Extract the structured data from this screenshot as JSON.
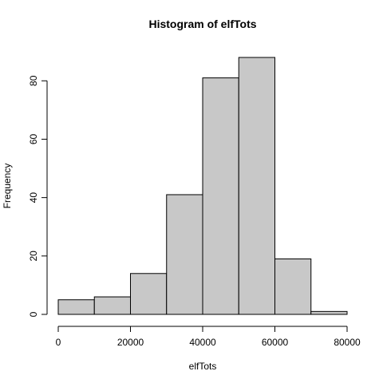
{
  "chart_data": {
    "type": "bar",
    "title": "Histogram of elfTots",
    "xlabel": "elfTots",
    "ylabel": "Frequency",
    "bins": [
      {
        "start": 0,
        "end": 10000,
        "value": 5
      },
      {
        "start": 10000,
        "end": 20000,
        "value": 6
      },
      {
        "start": 20000,
        "end": 30000,
        "value": 14
      },
      {
        "start": 30000,
        "end": 40000,
        "value": 41
      },
      {
        "start": 40000,
        "end": 50000,
        "value": 81
      },
      {
        "start": 50000,
        "end": 60000,
        "value": 88
      },
      {
        "start": 60000,
        "end": 70000,
        "value": 19
      },
      {
        "start": 70000,
        "end": 80000,
        "value": 1
      }
    ],
    "xlim": [
      0,
      80000
    ],
    "ylim": [
      0,
      88
    ],
    "x_ticks": [
      {
        "value": 0,
        "label": "0"
      },
      {
        "value": 20000,
        "label": "20000"
      },
      {
        "value": 40000,
        "label": "40000"
      },
      {
        "value": 60000,
        "label": "60000"
      },
      {
        "value": 80000,
        "label": "80000"
      }
    ],
    "y_ticks": [
      {
        "value": 0,
        "label": "0"
      },
      {
        "value": 20,
        "label": "20"
      },
      {
        "value": 40,
        "label": "40"
      },
      {
        "value": 60,
        "label": "60"
      },
      {
        "value": 80,
        "label": "80"
      }
    ],
    "bar_fill": "#C8C8C8",
    "bar_stroke": "#000000",
    "grid": false,
    "legend": "none"
  }
}
